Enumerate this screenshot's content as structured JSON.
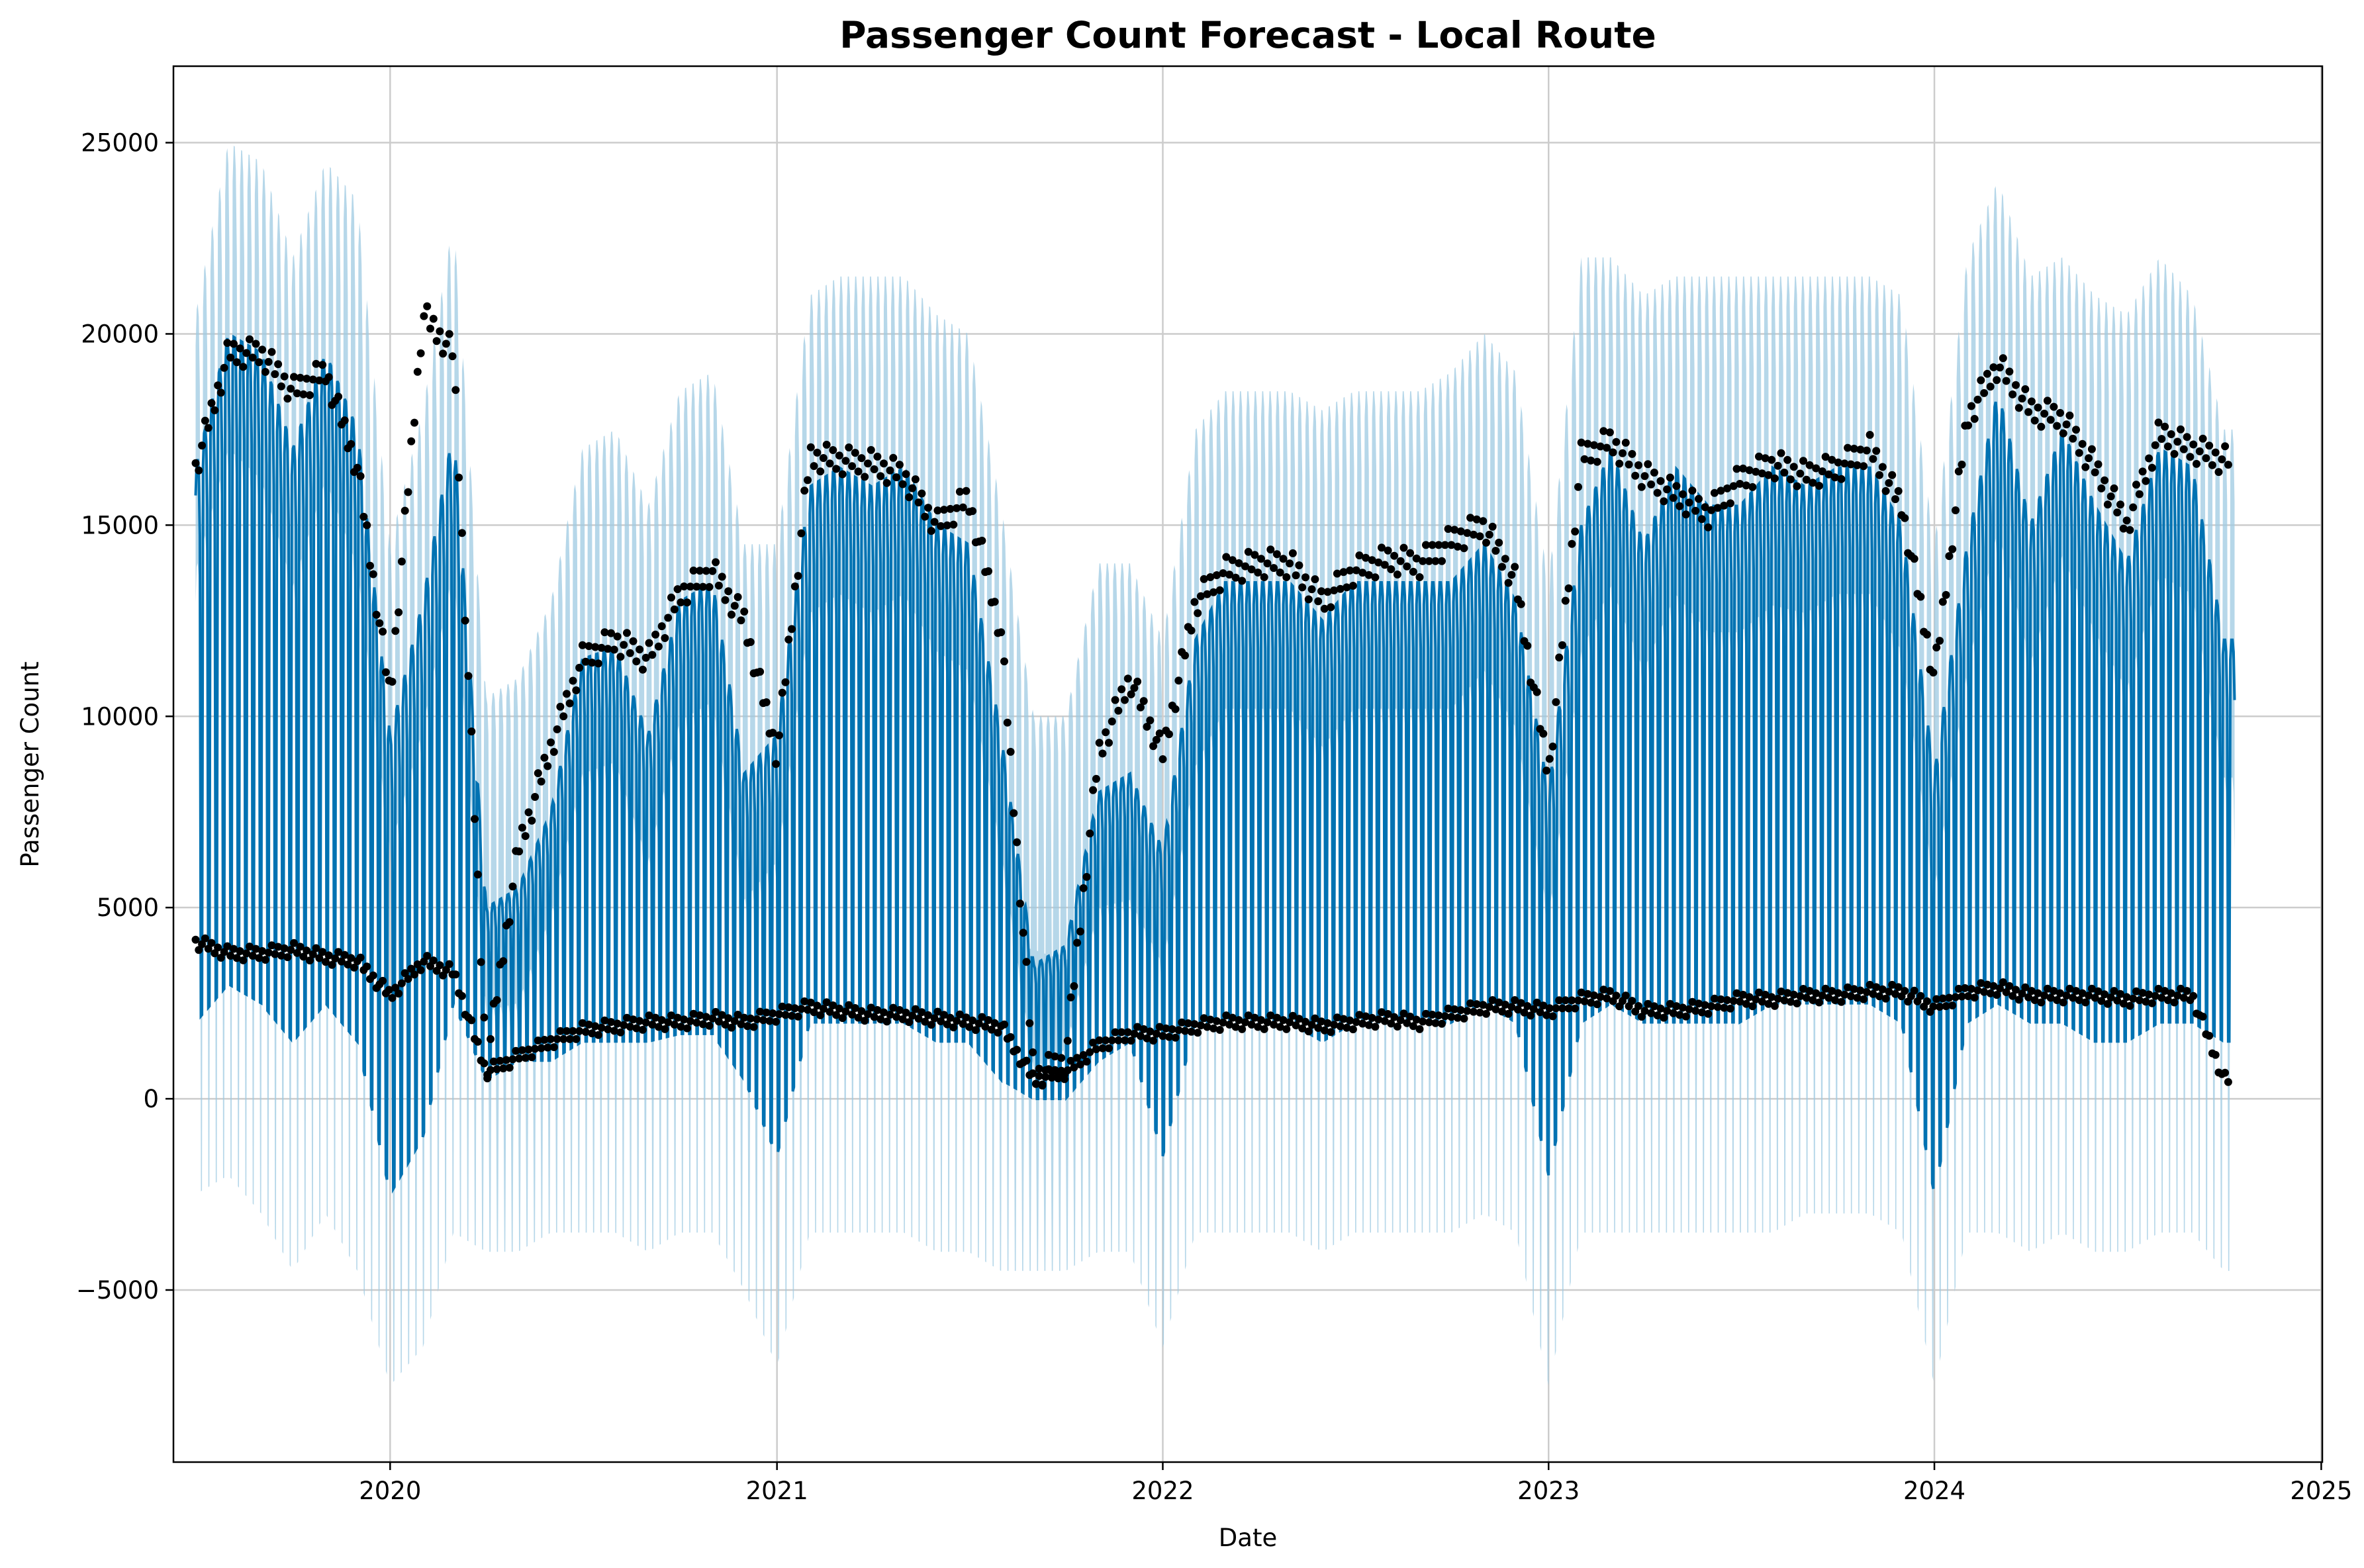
{
  "chart_data": {
    "type": "line",
    "title": "Passenger Count Forecast - Local Route",
    "xlabel": "Date",
    "ylabel": "Passenger Count",
    "x_range": [
      "2019-06-10",
      "2025-01-02"
    ],
    "ylim": [
      -9500,
      27000
    ],
    "x_ticks": [
      {
        "label": "2020",
        "date": "2020-01-01"
      },
      {
        "label": "2021",
        "date": "2021-01-01"
      },
      {
        "label": "2022",
        "date": "2022-01-01"
      },
      {
        "label": "2023",
        "date": "2023-01-01"
      },
      {
        "label": "2024",
        "date": "2024-01-01"
      },
      {
        "label": "2025",
        "date": "2025-01-01"
      }
    ],
    "y_ticks": [
      {
        "label": "−5000",
        "value": -5000
      },
      {
        "label": "0",
        "value": 0
      },
      {
        "label": "5000",
        "value": 5000
      },
      {
        "label": "10000",
        "value": 10000
      },
      {
        "label": "15000",
        "value": 15000
      },
      {
        "label": "20000",
        "value": 20000
      },
      {
        "label": "25000",
        "value": 25000
      }
    ],
    "grid": true,
    "legend": "none",
    "colors": {
      "forecast": "#0072B2",
      "interval": "#9ECAE1",
      "observed": "#000000",
      "grid": "#cccccc"
    },
    "series": [
      {
        "role": "forecast_envelope",
        "note_units": "passenger count by date",
        "x": [
          "2019-07-01",
          "2019-08-01",
          "2019-09-01",
          "2019-10-01",
          "2019-11-01",
          "2019-12-01",
          "2020-01-01",
          "2020-02-01",
          "2020-03-01",
          "2020-04-01",
          "2020-05-01",
          "2020-06-01",
          "2020-07-01",
          "2020-08-01",
          "2020-09-01",
          "2020-10-01",
          "2020-11-01",
          "2020-12-01",
          "2021-01-01",
          "2021-02-01",
          "2021-03-01",
          "2021-04-01",
          "2021-05-01",
          "2021-06-01",
          "2021-07-01",
          "2021-08-01",
          "2021-09-01",
          "2021-10-01",
          "2021-11-01",
          "2021-12-01",
          "2022-01-01",
          "2022-02-01",
          "2022-03-01",
          "2022-04-01",
          "2022-05-01",
          "2022-06-01",
          "2022-07-01",
          "2022-08-01",
          "2022-09-01",
          "2022-10-01",
          "2022-11-01",
          "2022-12-01",
          "2023-01-01",
          "2023-02-01",
          "2023-03-01",
          "2023-04-01",
          "2023-05-01",
          "2023-06-01",
          "2023-07-01",
          "2023-08-01",
          "2023-09-01",
          "2023-10-01",
          "2023-11-01",
          "2023-12-01",
          "2024-01-01",
          "2024-02-01",
          "2024-03-01",
          "2024-04-01",
          "2024-05-01",
          "2024-06-01",
          "2024-07-01",
          "2024-08-01",
          "2024-09-01",
          "2024-10-01"
        ],
        "upper": [
          16500,
          20000,
          19500,
          17000,
          19500,
          17500,
          9500,
          13000,
          17500,
          5000,
          5500,
          7500,
          11500,
          11800,
          9500,
          13000,
          13500,
          8500,
          9500,
          16000,
          16500,
          16000,
          16500,
          15000,
          14500,
          9500,
          3500,
          4000,
          8000,
          8500,
          6500,
          12000,
          13500,
          13500,
          13500,
          12500,
          13500,
          13500,
          13500,
          13500,
          14500,
          13000,
          8000,
          15000,
          17000,
          14500,
          16500,
          15500,
          15500,
          16500,
          16000,
          16500,
          16500,
          15000,
          8500,
          14500,
          18500,
          15000,
          17500,
          15500,
          14000,
          17000,
          16500,
          12000
        ],
        "lower": [
          2000,
          3000,
          2500,
          1500,
          2500,
          1500,
          -2500,
          -1000,
          2500,
          500,
          1000,
          1000,
          1500,
          1500,
          1500,
          1700,
          1700,
          500,
          -1500,
          2000,
          2000,
          2000,
          2000,
          1500,
          1500,
          500,
          0,
          0,
          1000,
          1500,
          -1500,
          2000,
          2000,
          2000,
          2000,
          1500,
          2000,
          2000,
          2000,
          2000,
          2500,
          2000,
          -2000,
          2000,
          2500,
          2000,
          2000,
          2000,
          2000,
          2500,
          2500,
          2500,
          2500,
          2000,
          -2500,
          2000,
          2500,
          2000,
          2000,
          1500,
          1500,
          2000,
          2000,
          1500
        ]
      },
      {
        "role": "uncertainty_interval",
        "x": [
          "2019-07-01",
          "2019-08-01",
          "2019-09-01",
          "2019-10-01",
          "2019-11-01",
          "2019-12-01",
          "2020-01-01",
          "2020-02-01",
          "2020-03-01",
          "2020-04-01",
          "2020-05-01",
          "2020-06-01",
          "2020-07-01",
          "2020-08-01",
          "2020-09-01",
          "2020-10-01",
          "2020-11-01",
          "2020-12-01",
          "2021-01-01",
          "2021-02-01",
          "2021-03-01",
          "2021-04-01",
          "2021-05-01",
          "2021-06-01",
          "2021-07-01",
          "2021-08-01",
          "2021-09-01",
          "2021-10-01",
          "2021-11-01",
          "2021-12-01",
          "2022-01-01",
          "2022-02-01",
          "2022-03-01",
          "2022-04-01",
          "2022-05-01",
          "2022-06-01",
          "2022-07-01",
          "2022-08-01",
          "2022-09-01",
          "2022-10-01",
          "2022-11-01",
          "2022-12-01",
          "2023-01-01",
          "2023-02-01",
          "2023-03-01",
          "2023-04-01",
          "2023-05-01",
          "2023-06-01",
          "2023-07-01",
          "2023-08-01",
          "2023-09-01",
          "2023-10-01",
          "2023-11-01",
          "2023-12-01",
          "2024-01-01",
          "2024-02-01",
          "2024-03-01",
          "2024-04-01",
          "2024-05-01",
          "2024-06-01",
          "2024-07-01",
          "2024-08-01",
          "2024-09-01",
          "2024-10-01"
        ],
        "upper": [
          20500,
          25000,
          24500,
          22000,
          24500,
          23500,
          14500,
          18000,
          23000,
          10500,
          11000,
          13000,
          17000,
          17500,
          15500,
          18500,
          19000,
          14500,
          14500,
          21000,
          21500,
          21500,
          21500,
          20500,
          20000,
          15500,
          10000,
          10000,
          14000,
          14000,
          12000,
          17500,
          18500,
          18500,
          18500,
          18000,
          18500,
          18500,
          18500,
          19000,
          20000,
          19000,
          13500,
          22000,
          22000,
          21000,
          21500,
          21500,
          21500,
          21500,
          21500,
          21500,
          21500,
          21000,
          14500,
          22000,
          24000,
          21500,
          22000,
          21000,
          20500,
          22000,
          21000,
          17500
        ],
        "lower": [
          -2500,
          -2000,
          -3000,
          -4500,
          -3000,
          -4500,
          -7500,
          -6500,
          -3500,
          -4000,
          -4000,
          -3500,
          -3500,
          -3500,
          -4000,
          -3500,
          -3500,
          -5000,
          -7000,
          -3500,
          -3500,
          -3500,
          -3500,
          -4000,
          -4000,
          -4500,
          -4500,
          -4500,
          -4000,
          -4000,
          -6500,
          -3500,
          -3500,
          -3500,
          -3500,
          -4000,
          -3500,
          -3500,
          -3500,
          -3500,
          -3000,
          -3500,
          -7500,
          -3500,
          -3500,
          -3500,
          -3500,
          -3500,
          -3500,
          -3500,
          -3000,
          -3000,
          -3000,
          -3500,
          -7500,
          -3500,
          -3500,
          -4000,
          -3500,
          -4000,
          -4000,
          -3500,
          -3500,
          -4500
        ]
      },
      {
        "role": "observed_weekday",
        "x": [
          "2019-07-01",
          "2019-08-01",
          "2019-09-01",
          "2019-10-01",
          "2019-11-01",
          "2019-12-01",
          "2020-01-01",
          "2020-02-01",
          "2020-03-01",
          "2020-04-01",
          "2020-05-01",
          "2020-06-01",
          "2020-07-01",
          "2020-08-01",
          "2020-09-01",
          "2020-10-01",
          "2020-11-01",
          "2020-12-01",
          "2021-01-01",
          "2021-02-01",
          "2021-03-01",
          "2021-04-01",
          "2021-05-01",
          "2021-06-01",
          "2021-07-01",
          "2021-08-01",
          "2021-09-01",
          "2021-10-01",
          "2021-11-01",
          "2021-12-01",
          "2022-01-01",
          "2022-02-01",
          "2022-03-01",
          "2022-04-01",
          "2022-05-01",
          "2022-06-01",
          "2022-07-01",
          "2022-08-01",
          "2022-09-01",
          "2022-10-01",
          "2022-11-01",
          "2022-12-01",
          "2023-01-01",
          "2023-02-01",
          "2023-03-01",
          "2023-04-01",
          "2023-05-01",
          "2023-06-01",
          "2023-07-01",
          "2023-08-01",
          "2023-09-01",
          "2023-10-01",
          "2023-11-01",
          "2023-12-01",
          "2024-01-01",
          "2024-02-01",
          "2024-03-01",
          "2024-04-01",
          "2024-05-01",
          "2024-06-01",
          "2024-07-01",
          "2024-08-01",
          "2024-09-01",
          "2024-10-01"
        ],
        "y": [
          16500,
          19500,
          19500,
          18500,
          19000,
          16500,
          10500,
          20500,
          19500,
          800,
          6500,
          9200,
          11500,
          12000,
          11500,
          13200,
          13800,
          12500,
          9000,
          16800,
          16700,
          16600,
          16300,
          15000,
          15700,
          12200,
          600,
          1000,
          9000,
          11000,
          9000,
          13000,
          13800,
          14000,
          14000,
          13000,
          13800,
          14100,
          14000,
          14600,
          15000,
          13500,
          8500,
          16800,
          17200,
          16300,
          15800,
          15300,
          16200,
          16600,
          16300,
          16500,
          17000,
          15500,
          11000,
          17800,
          19200,
          18000,
          17800,
          16500,
          15000,
          17400,
          17000,
          16700
        ]
      },
      {
        "role": "observed_weekend",
        "x": [
          "2019-07-01",
          "2019-08-01",
          "2019-09-01",
          "2019-10-01",
          "2019-11-01",
          "2019-12-01",
          "2020-01-01",
          "2020-02-01",
          "2020-03-01",
          "2020-04-01",
          "2020-05-01",
          "2020-06-01",
          "2020-07-01",
          "2020-08-01",
          "2020-09-01",
          "2020-10-01",
          "2020-11-01",
          "2020-12-01",
          "2021-01-01",
          "2021-02-01",
          "2021-03-01",
          "2021-04-01",
          "2021-05-01",
          "2021-06-01",
          "2021-07-01",
          "2021-08-01",
          "2021-09-01",
          "2021-10-01",
          "2021-11-01",
          "2021-12-01",
          "2022-01-01",
          "2022-02-01",
          "2022-03-01",
          "2022-04-01",
          "2022-05-01",
          "2022-06-01",
          "2022-07-01",
          "2022-08-01",
          "2022-09-01",
          "2022-10-01",
          "2022-11-01",
          "2022-12-01",
          "2023-01-01",
          "2023-02-01",
          "2023-03-01",
          "2023-04-01",
          "2023-05-01",
          "2023-06-01",
          "2023-07-01",
          "2023-08-01",
          "2023-09-01",
          "2023-10-01",
          "2023-11-01",
          "2023-12-01",
          "2024-01-01",
          "2024-02-01",
          "2024-03-01",
          "2024-04-01",
          "2024-05-01",
          "2024-06-01",
          "2024-07-01",
          "2024-08-01",
          "2024-09-01",
          "2024-10-01"
        ],
        "y": [
          4100,
          3800,
          3800,
          3900,
          3700,
          3600,
          2700,
          3600,
          3300,
          700,
          1100,
          1500,
          1800,
          1900,
          2000,
          2000,
          2100,
          2000,
          2200,
          2400,
          2300,
          2200,
          2200,
          2100,
          2000,
          1900,
          500,
          700,
          1400,
          1700,
          1700,
          1900,
          2000,
          2000,
          2000,
          1900,
          2000,
          2100,
          2000,
          2200,
          2400,
          2400,
          2300,
          2600,
          2700,
          2300,
          2300,
          2400,
          2600,
          2600,
          2700,
          2700,
          2800,
          2800,
          2400,
          2800,
          2900,
          2700,
          2700,
          2700,
          2600,
          2700,
          2700,
          500
        ]
      }
    ]
  }
}
